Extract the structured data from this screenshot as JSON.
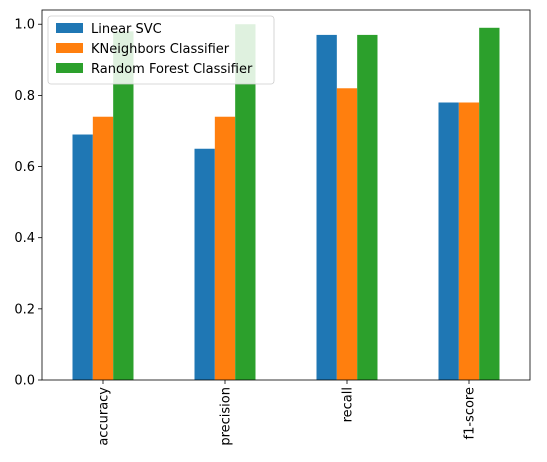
{
  "chart_data": {
    "type": "bar",
    "categories": [
      "accuracy",
      "precision",
      "recall",
      "f1-score"
    ],
    "series": [
      {
        "name": "Linear SVC",
        "color": "#1f77b4",
        "values": [
          0.69,
          0.65,
          0.97,
          0.78
        ]
      },
      {
        "name": "KNeighbors Classifier",
        "color": "#ff7f0e",
        "values": [
          0.74,
          0.74,
          0.82,
          0.78
        ]
      },
      {
        "name": "Random Forest Classifier",
        "color": "#2ca02c",
        "values": [
          0.98,
          1.0,
          0.97,
          0.99
        ]
      }
    ],
    "ylim": [
      0,
      1.04
    ],
    "yticks": [
      0.0,
      0.2,
      0.4,
      0.6,
      0.8,
      1.0
    ],
    "ytick_labels": [
      "0.0",
      "0.2",
      "0.4",
      "0.6",
      "0.8",
      "1.0"
    ],
    "xtick_rotation": 90,
    "grid": false,
    "legend": "upper-left"
  }
}
